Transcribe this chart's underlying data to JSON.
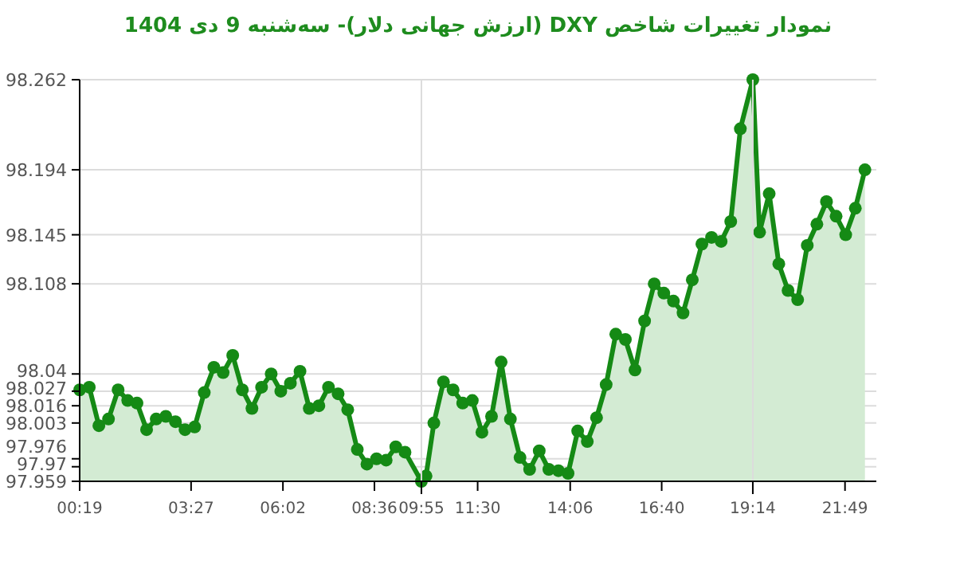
{
  "chart_data": {
    "type": "area",
    "title": "نمودار تغییرات شاخص DXY (ارزش جهانی دلار)- سه‌شنبه  9 دی 1404",
    "marker": "circle",
    "grid": "y",
    "xlim": [
      0.32,
      22.7
    ],
    "ylim": [
      97.959,
      98.262
    ],
    "xticks": [
      {
        "value": 0.32,
        "label": "00:19"
      },
      {
        "value": 3.45,
        "label": "03:27"
      },
      {
        "value": 6.03,
        "label": "06:02"
      },
      {
        "value": 8.6,
        "label": "08:36"
      },
      {
        "value": 9.92,
        "label": "09:55"
      },
      {
        "value": 11.5,
        "label": "11:30"
      },
      {
        "value": 14.1,
        "label": "14:06"
      },
      {
        "value": 16.67,
        "label": "16:40"
      },
      {
        "value": 19.23,
        "label": "19:14"
      },
      {
        "value": 21.82,
        "label": "21:49"
      }
    ],
    "ref_lines": [
      {
        "axis": "x",
        "value": 9.92,
        "color": "#dcdcdc"
      },
      {
        "axis": "x",
        "value": 19.23,
        "color": "#dcdcdc"
      }
    ],
    "yticks": [
      97.959,
      97.97,
      97.976,
      98.003,
      98.016,
      98.027,
      98.04,
      98.108,
      98.145,
      98.194,
      98.262
    ],
    "series": [
      {
        "color": "#158a15",
        "x": [
          0.32,
          0.59,
          0.86,
          1.13,
          1.4,
          1.67,
          1.93,
          2.2,
          2.47,
          2.74,
          3.01,
          3.28,
          3.55,
          3.82,
          4.09,
          4.35,
          4.62,
          4.89,
          5.16,
          5.43,
          5.7,
          5.97,
          6.24,
          6.51,
          6.77,
          7.04,
          7.31,
          7.58,
          7.85,
          8.12,
          8.39,
          8.66,
          8.93,
          9.2,
          9.46,
          9.92,
          10.05,
          10.27,
          10.54,
          10.81,
          11.08,
          11.35,
          11.62,
          11.89,
          12.16,
          12.42,
          12.69,
          12.96,
          13.23,
          13.5,
          13.77,
          14.04,
          14.31,
          14.58,
          14.84,
          15.11,
          15.38,
          15.65,
          15.92,
          16.19,
          16.46,
          16.73,
          17.0,
          17.27,
          17.53,
          17.8,
          18.07,
          18.34,
          18.61,
          18.88,
          19.23,
          19.42,
          19.69,
          19.96,
          20.22,
          20.49,
          20.76,
          21.03,
          21.3,
          21.57,
          21.84,
          22.11,
          22.38
        ],
        "values": [
          98.028,
          98.03,
          98.001,
          98.006,
          98.028,
          98.02,
          98.018,
          97.998,
          98.006,
          98.008,
          98.004,
          97.998,
          98.0,
          98.026,
          98.045,
          98.041,
          98.054,
          98.028,
          98.014,
          98.03,
          98.04,
          98.027,
          98.033,
          98.042,
          98.014,
          98.016,
          98.03,
          98.025,
          98.013,
          97.983,
          97.972,
          97.976,
          97.975,
          97.985,
          97.981,
          97.959,
          97.963,
          98.003,
          98.034,
          98.028,
          98.018,
          98.02,
          97.996,
          98.008,
          98.049,
          98.006,
          97.977,
          97.968,
          97.982,
          97.968,
          97.967,
          97.965,
          97.997,
          97.989,
          98.007,
          98.032,
          98.07,
          98.066,
          98.043,
          98.08,
          98.108,
          98.101,
          98.095,
          98.086,
          98.111,
          98.138,
          98.143,
          98.14,
          98.155,
          98.225,
          98.262,
          98.147,
          98.176,
          98.123,
          98.103,
          98.096,
          98.137,
          98.153,
          98.17,
          98.159,
          98.145,
          98.165,
          98.194
        ]
      }
    ]
  }
}
